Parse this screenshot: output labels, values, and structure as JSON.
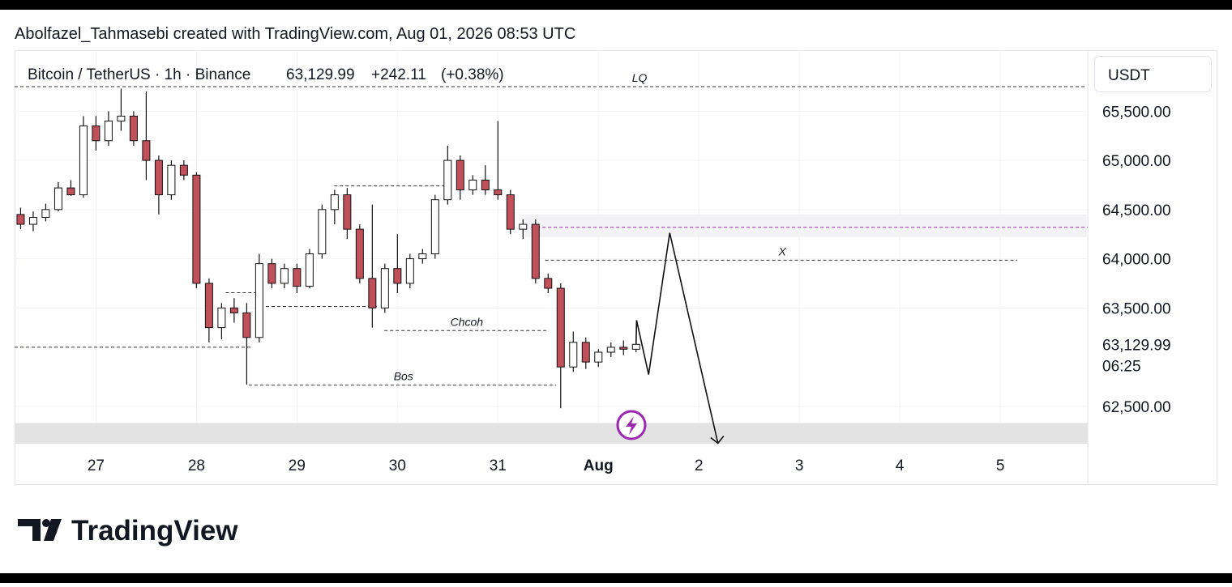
{
  "header": {
    "attribution": "Abolfazel_Tahmasebi created with TradingView.com, Aug 01, 2026 08:53 UTC",
    "symbol": "Bitcoin / TetherUS · 1h · Binance",
    "price": "63,129.99",
    "change": "+242.11",
    "change_pct": "(+0.38%)"
  },
  "footer": {
    "brand": "TradingView"
  },
  "chart_data": {
    "type": "candlestick",
    "currency": "USDT",
    "up_color": "#ffffff",
    "down_color": "#c0505a",
    "wick_color": "#111111",
    "xlim": [
      26.19,
      36.87
    ],
    "xticks": [
      27,
      28,
      29,
      30,
      31,
      {
        "value": 32,
        "label": "Aug"
      },
      {
        "value": 33,
        "label": "2"
      },
      {
        "value": 34,
        "label": "3"
      },
      {
        "value": 35,
        "label": "4"
      },
      {
        "value": 36,
        "label": "5"
      }
    ],
    "ylim": [
      62120,
      66120
    ],
    "yticks": [
      {
        "value": 62500,
        "label": "62,500.00"
      },
      {
        "value": 63500,
        "label": "63,500.00"
      },
      {
        "value": 64000,
        "label": "64,000.00"
      },
      {
        "value": 64500,
        "label": "64,500.00"
      },
      {
        "value": 65000,
        "label": "65,000.00"
      },
      {
        "value": 65500,
        "label": "65,500.00"
      }
    ],
    "grid": true,
    "last_price": {
      "value": 63129.99,
      "label": "63,129.99"
    },
    "countdown": "06:25",
    "candles": {
      "x": [
        26.25,
        26.375,
        26.5,
        26.625,
        26.75,
        26.875,
        27,
        27.125,
        27.25,
        27.375,
        27.5,
        27.625,
        27.75,
        27.875,
        28,
        28.125,
        28.25,
        28.375,
        28.5,
        28.625,
        28.75,
        28.875,
        29,
        29.125,
        29.25,
        29.375,
        29.5,
        29.625,
        29.75,
        29.875,
        30,
        30.125,
        30.25,
        30.375,
        30.5,
        30.625,
        30.75,
        30.875,
        31,
        31.125,
        31.25,
        31.375,
        31.5,
        31.625,
        31.75,
        31.875,
        32,
        32.125,
        32.25,
        32.375
      ],
      "ohlc": [
        [
          64450,
          64520,
          64300,
          64350
        ],
        [
          64350,
          64480,
          64280,
          64420
        ],
        [
          64420,
          64560,
          64380,
          64500
        ],
        [
          64500,
          64780,
          64480,
          64720
        ],
        [
          64720,
          64800,
          64640,
          64650
        ],
        [
          64650,
          65450,
          64620,
          65350
        ],
        [
          65350,
          65450,
          65100,
          65200
        ],
        [
          65200,
          65500,
          65150,
          65400
        ],
        [
          65400,
          65730,
          65300,
          65450
        ],
        [
          65450,
          65500,
          65150,
          65200
        ],
        [
          65200,
          65700,
          64800,
          65000
        ],
        [
          65000,
          65050,
          64450,
          64650
        ],
        [
          64650,
          65000,
          64600,
          64950
        ],
        [
          64950,
          65000,
          64800,
          64850
        ],
        [
          64850,
          64880,
          63700,
          63750
        ],
        [
          63750,
          63800,
          63150,
          63300
        ],
        [
          63300,
          63550,
          63180,
          63500
        ],
        [
          63500,
          63600,
          63350,
          63450
        ],
        [
          63450,
          63550,
          62720,
          63200
        ],
        [
          63200,
          64050,
          63150,
          63950
        ],
        [
          63950,
          64000,
          63700,
          63750
        ],
        [
          63750,
          63950,
          63700,
          63900
        ],
        [
          63900,
          63950,
          63650,
          63720
        ],
        [
          63720,
          64100,
          63700,
          64050
        ],
        [
          64050,
          64550,
          64000,
          64500
        ],
        [
          64500,
          64700,
          64350,
          64650
        ],
        [
          64650,
          64720,
          64200,
          64300
        ],
        [
          64300,
          64350,
          63750,
          63800
        ],
        [
          63800,
          64550,
          63300,
          63500
        ],
        [
          63500,
          63950,
          63450,
          63900
        ],
        [
          63900,
          64250,
          63650,
          63750
        ],
        [
          63750,
          64050,
          63700,
          64000
        ],
        [
          64000,
          64100,
          63950,
          64050
        ],
        [
          64050,
          64650,
          64000,
          64600
        ],
        [
          64600,
          65150,
          64550,
          65000
        ],
        [
          65000,
          65050,
          64600,
          64700
        ],
        [
          64700,
          64850,
          64650,
          64800
        ],
        [
          64800,
          64950,
          64650,
          64700
        ],
        [
          64700,
          65400,
          64600,
          64650
        ],
        [
          64650,
          64700,
          64250,
          64300
        ],
        [
          64300,
          64400,
          64200,
          64350
        ],
        [
          64350,
          64400,
          63750,
          63800
        ],
        [
          63800,
          63850,
          63650,
          63700
        ],
        [
          63700,
          63750,
          62480,
          62900
        ],
        [
          62900,
          63260,
          62850,
          63150
        ],
        [
          63150,
          63200,
          62880,
          62950
        ],
        [
          62950,
          63080,
          62900,
          63050
        ],
        [
          63050,
          63150,
          63000,
          63100
        ],
        [
          63100,
          63170,
          63020,
          63080
        ],
        [
          63080,
          63160,
          63050,
          63129.99
        ]
      ]
    },
    "zones": [
      {
        "x": [
          31.27,
          36.87
        ],
        "y": [
          64220,
          64450
        ]
      },
      {
        "x": [
          26.19,
          36.87
        ],
        "y": [
          62120,
          62330
        ]
      }
    ],
    "levels": [
      {
        "text": "LQ",
        "price": 65750,
        "x": [
          26.19,
          36.84
        ],
        "label_x": 32.41
      },
      {
        "price": 64740,
        "x": [
          29.37,
          30.47
        ]
      },
      {
        "price": 64320,
        "x": [
          31.33,
          36.87
        ],
        "color": "#9c27b0"
      },
      {
        "text": "X",
        "price": 63985,
        "x": [
          31.47,
          36.17
        ],
        "label_x": 33.83
      },
      {
        "price": 63655,
        "x": [
          28.29,
          28.63
        ]
      },
      {
        "price": 63515,
        "x": [
          28.69,
          29.81
        ]
      },
      {
        "text": "Chcoh",
        "price": 63270,
        "x": [
          29.87,
          31.5
        ],
        "label_x": 30.69
      },
      {
        "price": 63100,
        "x": [
          26.19,
          28.55
        ]
      },
      {
        "text": "Bos",
        "price": 62715,
        "x": [
          28.52,
          31.58
        ],
        "label_x": 30.06
      }
    ],
    "projection": {
      "x": [
        32.375,
        32.38,
        32.5,
        32.71,
        33.19
      ],
      "y": [
        63129.99,
        63375,
        62823,
        64263,
        62124
      ]
    }
  }
}
